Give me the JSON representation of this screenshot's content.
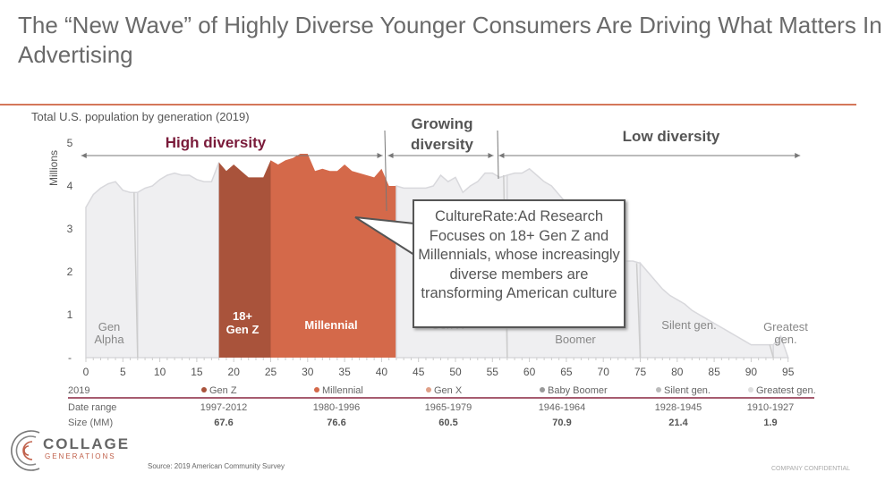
{
  "title": "The “New Wave” of Highly Diverse Younger Consumers Are Driving What Matters In Advertising",
  "colors": {
    "accent_rule": "#d4775a",
    "gen_z": "#a9533b",
    "millennial": "#d4694a",
    "area": "#efeff1",
    "high_diversity": "#7a1b3a"
  },
  "callout": "CultureRate:Ad Research Focuses on 18+ Gen Z and Millennials, whose increasingly diverse members are transforming American culture",
  "chart_data": {
    "type": "area",
    "title": "Total U.S. population by generation (2019)",
    "ylabel": "Millions",
    "ylim": [
      0,
      5
    ],
    "xlim": [
      0,
      95
    ],
    "y_ticks": [
      "-",
      "1",
      "2",
      "3",
      "4",
      "5"
    ],
    "x_ticks": [
      0,
      5,
      10,
      15,
      20,
      25,
      30,
      35,
      40,
      45,
      50,
      55,
      60,
      65,
      70,
      75,
      80,
      85,
      90,
      95
    ],
    "x": [
      0,
      1,
      2,
      3,
      4,
      5,
      6,
      7,
      8,
      9,
      10,
      11,
      12,
      13,
      14,
      15,
      16,
      17,
      18,
      19,
      20,
      21,
      22,
      23,
      24,
      25,
      26,
      27,
      28,
      29,
      30,
      31,
      32,
      33,
      34,
      35,
      36,
      37,
      38,
      39,
      40,
      41,
      42,
      43,
      44,
      45,
      46,
      47,
      48,
      49,
      50,
      51,
      52,
      53,
      54,
      55,
      56,
      57,
      58,
      59,
      60,
      61,
      62,
      63,
      64,
      65,
      66,
      67,
      68,
      69,
      70,
      71,
      72,
      73,
      74,
      75,
      76,
      77,
      78,
      79,
      80,
      81,
      82,
      83,
      84,
      85,
      86,
      87,
      88,
      89,
      90,
      91,
      92,
      93,
      94,
      95
    ],
    "values": [
      3.5,
      3.8,
      3.95,
      4.05,
      4.1,
      3.9,
      3.85,
      3.85,
      3.95,
      4.0,
      4.15,
      4.25,
      4.3,
      4.25,
      4.25,
      4.15,
      4.1,
      4.1,
      4.55,
      4.35,
      4.5,
      4.35,
      4.2,
      4.2,
      4.2,
      4.6,
      4.5,
      4.6,
      4.65,
      4.75,
      4.75,
      4.35,
      4.4,
      4.35,
      4.35,
      4.5,
      4.35,
      4.3,
      4.25,
      4.2,
      4.4,
      4.0,
      4.0,
      3.95,
      3.95,
      3.95,
      3.95,
      4.0,
      4.25,
      4.1,
      4.2,
      3.85,
      4.0,
      4.1,
      4.3,
      4.3,
      4.2,
      4.25,
      4.3,
      4.3,
      4.4,
      4.25,
      4.1,
      4.0,
      3.8,
      3.6,
      3.4,
      3.2,
      3.0,
      2.8,
      2.6,
      2.45,
      2.3,
      2.25,
      2.25,
      2.2,
      2.0,
      1.8,
      1.6,
      1.45,
      1.35,
      1.25,
      1.1,
      1.0,
      0.9,
      0.8,
      0.7,
      0.6,
      0.5,
      0.4,
      0.3,
      0.3,
      0.3,
      0.3,
      0.5,
      0.0
    ],
    "segments": [
      {
        "label": "Gen Alpha",
        "from": 0,
        "to": 7,
        "highlight": false
      },
      {
        "label": "",
        "from": 7,
        "to": 18,
        "highlight": false
      },
      {
        "label": "18+ Gen Z",
        "from": 18,
        "to": 25,
        "highlight": "gen_z"
      },
      {
        "label": "Millennial",
        "from": 25,
        "to": 42,
        "highlight": "millennial"
      },
      {
        "label": "Gen X",
        "from": 42,
        "to": 57,
        "highlight": false
      },
      {
        "label": "Baby Boomer",
        "from": 57,
        "to": 75,
        "highlight": false
      },
      {
        "label": "Silent gen.",
        "from": 75,
        "to": 93,
        "highlight": false
      },
      {
        "label": "Greatest gen.",
        "from": 93,
        "to": 95,
        "highlight": false
      }
    ],
    "bands": [
      {
        "label": "High diversity",
        "from": -1,
        "to": 40.5
      },
      {
        "label": "Growing diversity",
        "from": 40.5,
        "to": 55.5
      },
      {
        "label": "Low diversity",
        "from": 55.5,
        "to": 97
      }
    ]
  },
  "table": {
    "header": "2019",
    "row_labels": [
      "Date range",
      "Size (MM)"
    ],
    "columns": [
      {
        "name": "Gen Z",
        "dot": "#a9533b",
        "range": "1997-2012",
        "size": "67.6"
      },
      {
        "name": "Millennial",
        "dot": "#d4694a",
        "range": "1980-1996",
        "size": "76.6"
      },
      {
        "name": "Gen X",
        "dot": "#e0a088",
        "range": "1965-1979",
        "size": "60.5"
      },
      {
        "name": "Baby Boomer",
        "dot": "#999999",
        "range": "1946-1964",
        "size": "70.9"
      },
      {
        "name": "Silent gen.",
        "dot": "#bbbbbb",
        "range": "1928-1945",
        "size": "21.4"
      },
      {
        "name": "Greatest gen.",
        "dot": "#dddddd",
        "range": "1910-1927",
        "size": "1.9"
      }
    ]
  },
  "logo": {
    "name": "COLLAGE",
    "sub": "GENERATIONS"
  },
  "source": "Source: 2019 American Community Survey",
  "confidential": "COMPANY CONFIDENTIAL"
}
